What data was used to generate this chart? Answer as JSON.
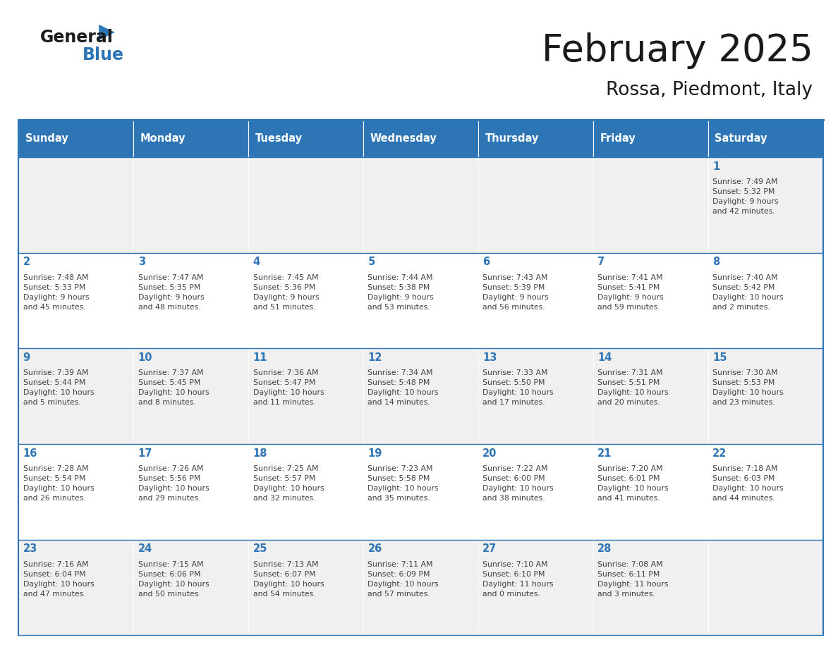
{
  "title": "February 2025",
  "subtitle": "Rossa, Piedmont, Italy",
  "header_color": "#2e75b6",
  "header_text_color": "#ffffff",
  "cell_bg_even": "#ffffff",
  "cell_bg_odd": "#f0f0f0",
  "day_number_color": "#2e75b6",
  "info_text_color": "#404040",
  "border_color": "#2e75b6",
  "grid_line_color": "#2e75b6",
  "days_of_week": [
    "Sunday",
    "Monday",
    "Tuesday",
    "Wednesday",
    "Thursday",
    "Friday",
    "Saturday"
  ],
  "weeks": [
    [
      {
        "day": null,
        "info": null
      },
      {
        "day": null,
        "info": null
      },
      {
        "day": null,
        "info": null
      },
      {
        "day": null,
        "info": null
      },
      {
        "day": null,
        "info": null
      },
      {
        "day": null,
        "info": null
      },
      {
        "day": "1",
        "info": "Sunrise: 7:49 AM\nSunset: 5:32 PM\nDaylight: 9 hours\nand 42 minutes."
      }
    ],
    [
      {
        "day": "2",
        "info": "Sunrise: 7:48 AM\nSunset: 5:33 PM\nDaylight: 9 hours\nand 45 minutes."
      },
      {
        "day": "3",
        "info": "Sunrise: 7:47 AM\nSunset: 5:35 PM\nDaylight: 9 hours\nand 48 minutes."
      },
      {
        "day": "4",
        "info": "Sunrise: 7:45 AM\nSunset: 5:36 PM\nDaylight: 9 hours\nand 51 minutes."
      },
      {
        "day": "5",
        "info": "Sunrise: 7:44 AM\nSunset: 5:38 PM\nDaylight: 9 hours\nand 53 minutes."
      },
      {
        "day": "6",
        "info": "Sunrise: 7:43 AM\nSunset: 5:39 PM\nDaylight: 9 hours\nand 56 minutes."
      },
      {
        "day": "7",
        "info": "Sunrise: 7:41 AM\nSunset: 5:41 PM\nDaylight: 9 hours\nand 59 minutes."
      },
      {
        "day": "8",
        "info": "Sunrise: 7:40 AM\nSunset: 5:42 PM\nDaylight: 10 hours\nand 2 minutes."
      }
    ],
    [
      {
        "day": "9",
        "info": "Sunrise: 7:39 AM\nSunset: 5:44 PM\nDaylight: 10 hours\nand 5 minutes."
      },
      {
        "day": "10",
        "info": "Sunrise: 7:37 AM\nSunset: 5:45 PM\nDaylight: 10 hours\nand 8 minutes."
      },
      {
        "day": "11",
        "info": "Sunrise: 7:36 AM\nSunset: 5:47 PM\nDaylight: 10 hours\nand 11 minutes."
      },
      {
        "day": "12",
        "info": "Sunrise: 7:34 AM\nSunset: 5:48 PM\nDaylight: 10 hours\nand 14 minutes."
      },
      {
        "day": "13",
        "info": "Sunrise: 7:33 AM\nSunset: 5:50 PM\nDaylight: 10 hours\nand 17 minutes."
      },
      {
        "day": "14",
        "info": "Sunrise: 7:31 AM\nSunset: 5:51 PM\nDaylight: 10 hours\nand 20 minutes."
      },
      {
        "day": "15",
        "info": "Sunrise: 7:30 AM\nSunset: 5:53 PM\nDaylight: 10 hours\nand 23 minutes."
      }
    ],
    [
      {
        "day": "16",
        "info": "Sunrise: 7:28 AM\nSunset: 5:54 PM\nDaylight: 10 hours\nand 26 minutes."
      },
      {
        "day": "17",
        "info": "Sunrise: 7:26 AM\nSunset: 5:56 PM\nDaylight: 10 hours\nand 29 minutes."
      },
      {
        "day": "18",
        "info": "Sunrise: 7:25 AM\nSunset: 5:57 PM\nDaylight: 10 hours\nand 32 minutes."
      },
      {
        "day": "19",
        "info": "Sunrise: 7:23 AM\nSunset: 5:58 PM\nDaylight: 10 hours\nand 35 minutes."
      },
      {
        "day": "20",
        "info": "Sunrise: 7:22 AM\nSunset: 6:00 PM\nDaylight: 10 hours\nand 38 minutes."
      },
      {
        "day": "21",
        "info": "Sunrise: 7:20 AM\nSunset: 6:01 PM\nDaylight: 10 hours\nand 41 minutes."
      },
      {
        "day": "22",
        "info": "Sunrise: 7:18 AM\nSunset: 6:03 PM\nDaylight: 10 hours\nand 44 minutes."
      }
    ],
    [
      {
        "day": "23",
        "info": "Sunrise: 7:16 AM\nSunset: 6:04 PM\nDaylight: 10 hours\nand 47 minutes."
      },
      {
        "day": "24",
        "info": "Sunrise: 7:15 AM\nSunset: 6:06 PM\nDaylight: 10 hours\nand 50 minutes."
      },
      {
        "day": "25",
        "info": "Sunrise: 7:13 AM\nSunset: 6:07 PM\nDaylight: 10 hours\nand 54 minutes."
      },
      {
        "day": "26",
        "info": "Sunrise: 7:11 AM\nSunset: 6:09 PM\nDaylight: 10 hours\nand 57 minutes."
      },
      {
        "day": "27",
        "info": "Sunrise: 7:10 AM\nSunset: 6:10 PM\nDaylight: 11 hours\nand 0 minutes."
      },
      {
        "day": "28",
        "info": "Sunrise: 7:08 AM\nSunset: 6:11 PM\nDaylight: 11 hours\nand 3 minutes."
      },
      {
        "day": null,
        "info": null
      }
    ]
  ]
}
